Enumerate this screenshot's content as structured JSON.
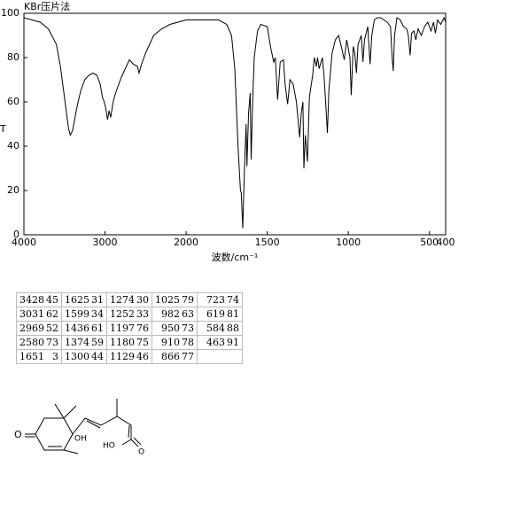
{
  "chart_data": {
    "type": "line",
    "title": "KBr压片法",
    "y_label": "T",
    "x_label": "波数/cm⁻¹",
    "xlim": [
      4000,
      400
    ],
    "xticks": [
      4000,
      3000,
      2000,
      1500,
      1000,
      500,
      400
    ],
    "x_scale_break": 2000,
    "x_scale_factor_below_break": 2,
    "ylim": [
      0,
      100
    ],
    "yticks": [
      0,
      20,
      40,
      60,
      80,
      100
    ],
    "series": [
      {
        "color": "#000000",
        "x": [
          4000,
          3900,
          3800,
          3700,
          3600,
          3550,
          3500,
          3450,
          3428,
          3400,
          3350,
          3300,
          3250,
          3200,
          3150,
          3100,
          3060,
          3031,
          3010,
          2990,
          2969,
          2950,
          2930,
          2900,
          2870,
          2800,
          2750,
          2700,
          2650,
          2600,
          2580,
          2550,
          2500,
          2400,
          2300,
          2200,
          2100,
          2000,
          1900,
          1800,
          1750,
          1720,
          1700,
          1680,
          1665,
          1660,
          1651,
          1640,
          1630,
          1625,
          1615,
          1605,
          1599,
          1590,
          1580,
          1560,
          1540,
          1500,
          1480,
          1460,
          1450,
          1436,
          1420,
          1400,
          1390,
          1374,
          1360,
          1340,
          1320,
          1300,
          1290,
          1280,
          1274,
          1265,
          1252,
          1240,
          1220,
          1210,
          1197,
          1190,
          1180,
          1160,
          1150,
          1140,
          1129,
          1120,
          1100,
          1080,
          1060,
          1040,
          1025,
          1010,
          990,
          982,
          970,
          960,
          950,
          940,
          920,
          910,
          900,
          880,
          870,
          866,
          855,
          840,
          820,
          800,
          780,
          760,
          740,
          730,
          723,
          715,
          700,
          680,
          660,
          640,
          630,
          619,
          610,
          595,
          584,
          570,
          550,
          530,
          510,
          490,
          475,
          463,
          450,
          430,
          410,
          400
        ],
        "values": [
          98,
          97,
          96,
          93,
          86,
          76,
          62,
          48,
          45,
          47,
          57,
          65,
          70,
          72,
          73,
          72,
          68,
          62,
          60,
          57,
          52,
          56,
          53,
          60,
          64,
          71,
          75,
          79,
          77,
          76,
          73,
          77,
          82,
          90,
          93,
          95,
          96,
          97,
          97,
          97,
          95,
          90,
          75,
          40,
          20,
          19,
          3,
          30,
          50,
          31,
          55,
          64,
          34,
          60,
          80,
          92,
          95,
          94,
          85,
          78,
          80,
          61,
          78,
          79,
          68,
          59,
          70,
          68,
          60,
          44,
          55,
          60,
          30,
          45,
          33,
          62,
          72,
          80,
          76,
          80,
          75,
          80,
          72,
          60,
          46,
          65,
          82,
          88,
          90,
          84,
          79,
          88,
          80,
          63,
          85,
          82,
          73,
          86,
          90,
          78,
          88,
          94,
          82,
          77,
          90,
          97,
          98,
          98,
          97,
          96,
          94,
          80,
          74,
          90,
          98,
          97,
          94,
          93,
          90,
          81,
          91,
          92,
          88,
          93,
          90,
          94,
          96,
          92,
          96,
          91,
          97,
          95,
          98,
          96
        ]
      }
    ]
  },
  "peak_table": {
    "rows": [
      [
        [
          3428,
          45
        ],
        [
          1625,
          31
        ],
        [
          1274,
          30
        ],
        [
          1025,
          79
        ],
        [
          723,
          74
        ]
      ],
      [
        [
          3031,
          62
        ],
        [
          1599,
          34
        ],
        [
          1252,
          33
        ],
        [
          982,
          63
        ],
        [
          619,
          81
        ]
      ],
      [
        [
          2969,
          52
        ],
        [
          1436,
          61
        ],
        [
          1197,
          76
        ],
        [
          950,
          73
        ],
        [
          584,
          88
        ]
      ],
      [
        [
          2580,
          73
        ],
        [
          1374,
          59
        ],
        [
          1180,
          75
        ],
        [
          910,
          78
        ],
        [
          463,
          91
        ]
      ],
      [
        [
          1651,
          3
        ],
        [
          1300,
          44
        ],
        [
          1129,
          46
        ],
        [
          866,
          77
        ]
      ]
    ]
  },
  "structure": {
    "labels": [
      "O",
      "OH",
      "HO",
      "O"
    ]
  }
}
